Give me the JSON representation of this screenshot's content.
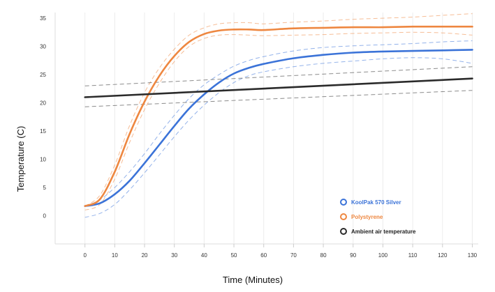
{
  "chart_data": {
    "type": "line",
    "xlabel": "Time (Minutes)",
    "ylabel": "Temperature (C)",
    "xlim": [
      -10,
      132
    ],
    "ylim": [
      -5,
      36
    ],
    "x_ticks": [
      0,
      10,
      20,
      30,
      40,
      50,
      60,
      70,
      80,
      90,
      100,
      110,
      120,
      130
    ],
    "y_ticks": [
      0,
      5,
      10,
      15,
      20,
      25,
      30,
      35
    ],
    "grid": "vertical",
    "legend_position": "bottom-right",
    "series": [
      {
        "name": "KoolPak 570 Silver",
        "color": "#3b73d8",
        "x": [
          0,
          5,
          10,
          15,
          20,
          25,
          30,
          35,
          40,
          45,
          50,
          55,
          60,
          70,
          80,
          90,
          100,
          110,
          120,
          130
        ],
        "y": [
          1.7,
          2.2,
          3.8,
          6.2,
          9.3,
          12.6,
          15.9,
          19.0,
          21.5,
          23.6,
          25.2,
          26.2,
          26.9,
          27.9,
          28.5,
          28.9,
          29.1,
          29.2,
          29.3,
          29.4
        ],
        "band_upper": [
          1.7,
          2.8,
          5.0,
          7.8,
          11.0,
          14.5,
          17.8,
          20.8,
          23.2,
          25.0,
          26.5,
          27.5,
          28.2,
          29.2,
          29.8,
          30.1,
          30.3,
          30.5,
          30.8,
          31.0
        ],
        "band_lower": [
          -0.3,
          0.4,
          2.0,
          4.6,
          7.6,
          10.8,
          14.0,
          17.0,
          19.6,
          21.8,
          23.6,
          24.8,
          25.5,
          26.4,
          27.0,
          27.4,
          27.8,
          28.0,
          27.8,
          27.0
        ]
      },
      {
        "name": "Polystyrene",
        "color": "#ee8740",
        "x": [
          0,
          5,
          10,
          15,
          20,
          25,
          30,
          35,
          40,
          45,
          50,
          55,
          60,
          70,
          80,
          90,
          100,
          110,
          120,
          130
        ],
        "y": [
          1.7,
          2.9,
          7.8,
          14.5,
          20.2,
          24.8,
          28.3,
          30.8,
          32.2,
          32.8,
          33.0,
          33.0,
          32.9,
          33.2,
          33.3,
          33.4,
          33.4,
          33.5,
          33.5,
          33.5
        ],
        "band_upper": [
          1.7,
          3.6,
          9.0,
          16.0,
          21.8,
          26.2,
          29.5,
          32.0,
          33.3,
          34.0,
          34.2,
          34.2,
          34.0,
          34.3,
          34.5,
          34.8,
          35.0,
          35.2,
          35.5,
          35.8
        ],
        "band_lower": [
          1.0,
          2.0,
          6.5,
          13.0,
          18.8,
          23.5,
          27.3,
          30.0,
          31.4,
          32.0,
          32.1,
          32.0,
          31.9,
          32.0,
          32.1,
          32.3,
          32.4,
          32.5,
          32.4,
          32.0
        ]
      },
      {
        "name": "Ambient air temperature",
        "color": "#2b2b2b",
        "x": [
          0,
          130
        ],
        "y": [
          21.0,
          24.3
        ],
        "band_upper": [
          23.0,
          26.4
        ],
        "band_lower": [
          19.3,
          22.2
        ]
      }
    ]
  }
}
